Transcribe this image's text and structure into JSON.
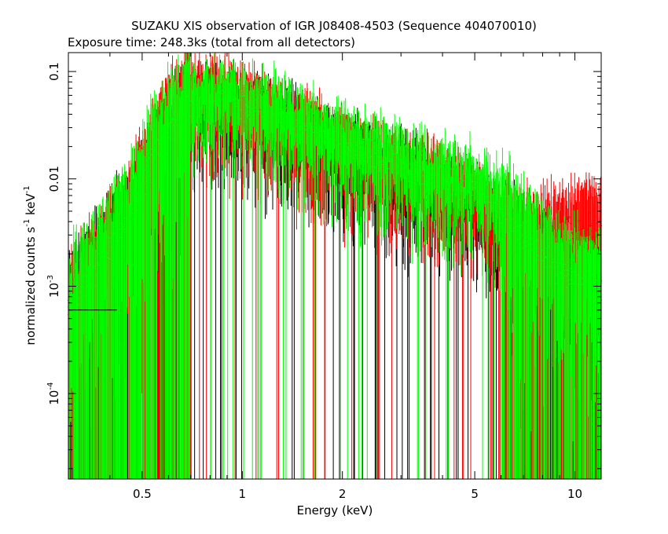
{
  "chart_data": {
    "type": "scatter",
    "title": "SUZAKU XIS observation of IGR J08408-4503 (Sequence 404070010)",
    "subtitle": "Exposure time: 248.3ks (total from all detectors)",
    "xlabel": "Energy (keV)",
    "ylabel_main": "normalized counts s",
    "ylabel_exp1": "-1",
    "ylabel_mid": " keV",
    "ylabel_exp2": "-1",
    "x_scale": "log",
    "y_scale": "log",
    "xlim": [
      0.3,
      12
    ],
    "ylim": [
      1.6e-05,
      0.15
    ],
    "x_ticks": [
      {
        "value": 0.5,
        "label": "0.5"
      },
      {
        "value": 1,
        "label": "1"
      },
      {
        "value": 2,
        "label": "2"
      },
      {
        "value": 5,
        "label": "5"
      },
      {
        "value": 10,
        "label": "10"
      }
    ],
    "y_ticks": [
      {
        "value": 0.1,
        "label": "0.1",
        "exp": ""
      },
      {
        "value": 0.01,
        "label": "0.01",
        "exp": ""
      },
      {
        "value": 0.001,
        "label": "10",
        "exp": "-3"
      },
      {
        "value": 0.0001,
        "label": "10",
        "exp": "-4"
      }
    ],
    "grid": false,
    "series": [
      {
        "color": "#000000",
        "envelope": [
          [
            0.3,
            0.0006
          ],
          [
            0.45,
            0.003
          ],
          [
            0.6,
            0.02
          ],
          [
            0.7,
            0.04
          ],
          [
            0.8,
            0.05
          ],
          [
            0.9,
            0.045
          ],
          [
            1.0,
            0.04
          ],
          [
            1.3,
            0.03
          ],
          [
            1.7,
            0.022
          ],
          [
            2.2,
            0.015
          ],
          [
            3.0,
            0.011
          ],
          [
            4.0,
            0.008
          ],
          [
            5.0,
            0.006
          ],
          [
            5.8,
            0.004
          ],
          [
            6.5,
            0.0025
          ],
          [
            7.5,
            0.0018
          ],
          [
            9,
            0.0012
          ],
          [
            12,
            0.0008
          ]
        ]
      },
      {
        "color": "#ff0000",
        "envelope": [
          [
            0.3,
            0.0006
          ],
          [
            0.45,
            0.004
          ],
          [
            0.6,
            0.03
          ],
          [
            0.7,
            0.055
          ],
          [
            0.8,
            0.065
          ],
          [
            0.9,
            0.055
          ],
          [
            1.0,
            0.05
          ],
          [
            1.3,
            0.035
          ],
          [
            1.7,
            0.025
          ],
          [
            2.2,
            0.017
          ],
          [
            3.0,
            0.012
          ],
          [
            4.0,
            0.009
          ],
          [
            5.0,
            0.0065
          ],
          [
            5.8,
            0.0045
          ],
          [
            6.5,
            0.003
          ],
          [
            7.5,
            0.0025
          ],
          [
            9,
            0.003
          ],
          [
            12,
            0.0035
          ]
        ]
      },
      {
        "color": "#00ff00",
        "envelope": [
          [
            0.3,
            0.0006
          ],
          [
            0.45,
            0.004
          ],
          [
            0.6,
            0.03
          ],
          [
            0.7,
            0.05
          ],
          [
            0.8,
            0.06
          ],
          [
            0.9,
            0.055
          ],
          [
            1.0,
            0.05
          ],
          [
            1.3,
            0.04
          ],
          [
            1.7,
            0.028
          ],
          [
            2.2,
            0.02
          ],
          [
            3.0,
            0.014
          ],
          [
            4.0,
            0.011
          ],
          [
            5.0,
            0.0085
          ],
          [
            5.8,
            0.006
          ],
          [
            6.5,
            0.004
          ],
          [
            7.5,
            0.0025
          ],
          [
            9,
            0.0015
          ],
          [
            12,
            0.001
          ]
        ]
      }
    ]
  }
}
